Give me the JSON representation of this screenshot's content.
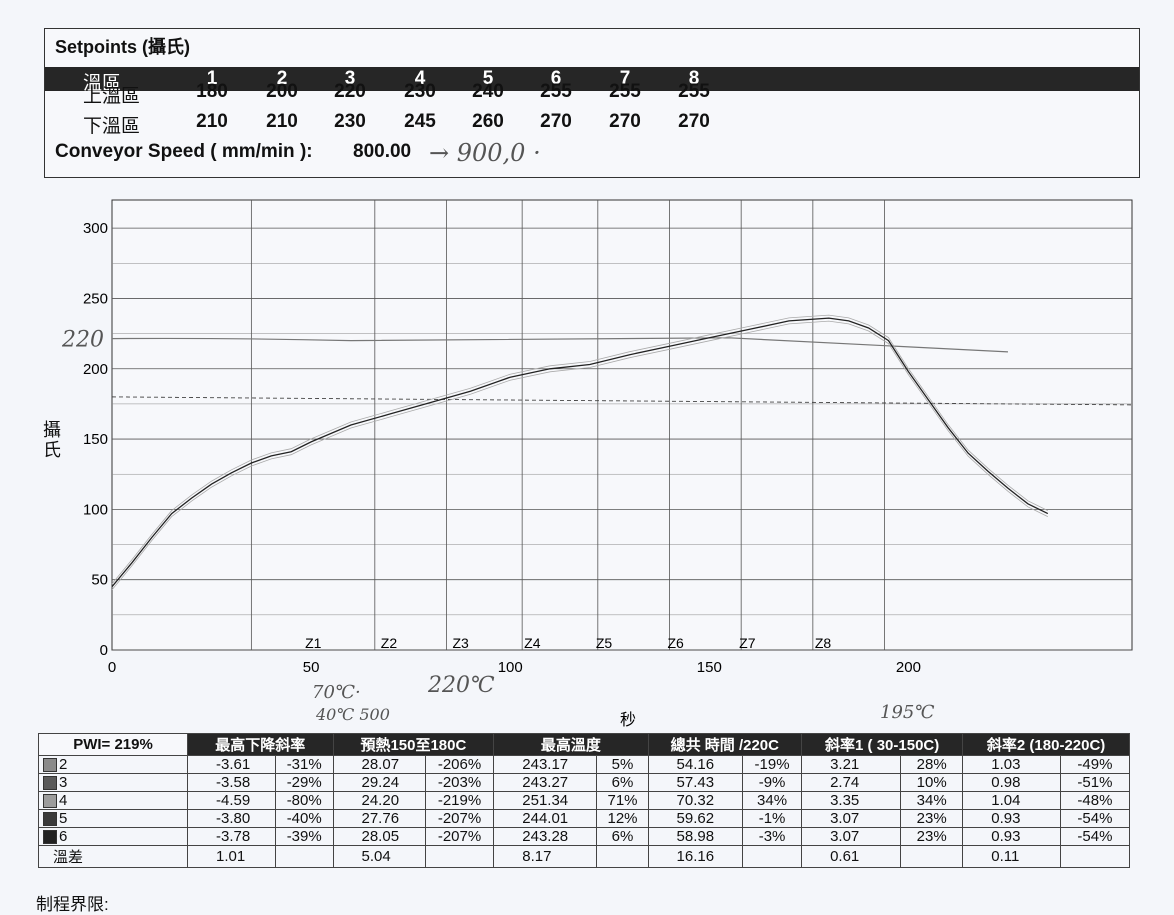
{
  "setpoints": {
    "title": "Setpoints (攝氏)",
    "zone_header": "溫區",
    "zones": [
      "1",
      "2",
      "3",
      "4",
      "5",
      "6",
      "7",
      "8"
    ],
    "upper_label": "上溫區",
    "upper": [
      "180",
      "200",
      "220",
      "230",
      "240",
      "255",
      "255",
      "255"
    ],
    "lower_label": "下溫區",
    "lower": [
      "210",
      "210",
      "230",
      "245",
      "260",
      "270",
      "270",
      "270"
    ],
    "conveyor_label": "Conveyor Speed ( mm/min ):",
    "conveyor_value": "800.00",
    "handwritten_conveyor": "→ 900,0 ·"
  },
  "chart_data": {
    "type": "line",
    "xlabel": "秒",
    "ylabel": "攝氏",
    "xlim": [
      0,
      250
    ],
    "ylim": [
      0,
      320
    ],
    "x_ticks": [
      "0",
      "50",
      "100",
      "150",
      "200"
    ],
    "y_ticks": [
      "0",
      "50",
      "100",
      "150",
      "200",
      "250",
      "300"
    ],
    "zone_markers": [
      {
        "label": "Z1",
        "x": 48
      },
      {
        "label": "Z2",
        "x": 67
      },
      {
        "label": "Z3",
        "x": 85
      },
      {
        "label": "Z4",
        "x": 103
      },
      {
        "label": "Z5",
        "x": 121
      },
      {
        "label": "Z6",
        "x": 139
      },
      {
        "label": "Z7",
        "x": 157
      },
      {
        "label": "Z8",
        "x": 176
      }
    ],
    "extra_gridlines_x": [
      35,
      66,
      84,
      103,
      122,
      140,
      158,
      176,
      194
    ],
    "reference_line_y": 180,
    "handwritten_line_y": 220,
    "series": [
      {
        "values_x": [
          0,
          5,
          10,
          15,
          20,
          25,
          30,
          35,
          40,
          45,
          50,
          60,
          70,
          80,
          90,
          100,
          110,
          120,
          130,
          140,
          150,
          160,
          170,
          175,
          180,
          185,
          190,
          195,
          200,
          205,
          210,
          215,
          220,
          225,
          230,
          235
        ],
        "values_y": [
          45,
          62,
          80,
          97,
          108,
          118,
          126,
          133,
          138,
          141,
          148,
          160,
          168,
          176,
          184,
          194,
          200,
          203,
          210,
          216,
          222,
          228,
          234,
          235,
          236,
          234,
          229,
          220,
          198,
          178,
          158,
          140,
          127,
          115,
          104,
          97
        ]
      }
    ],
    "annotations": [
      "220",
      "70℃·",
      "220℃",
      "40℃ 500",
      "195℃"
    ]
  },
  "table": {
    "pwi": "PWI= 219%",
    "headers": [
      "最高下降斜率",
      "預熱150至180C",
      "最高溫度",
      "總共 時間 /220C",
      "斜率1 ( 30-150C)",
      "斜率2 (180-220C)"
    ],
    "swatch_colors": [
      "#8a8a8a",
      "#5a5a5a",
      "#9c9c9c",
      "#3a3a3a",
      "#222222"
    ],
    "rows": [
      {
        "probe": "2",
        "v": [
          "-3.61",
          "-31%",
          "28.07",
          "-206%",
          "243.17",
          "5%",
          "54.16",
          "-19%",
          "3.21",
          "28%",
          "1.03",
          "-49%"
        ]
      },
      {
        "probe": "3",
        "v": [
          "-3.58",
          "-29%",
          "29.24",
          "-203%",
          "243.27",
          "6%",
          "57.43",
          "-9%",
          "2.74",
          "10%",
          "0.98",
          "-51%"
        ]
      },
      {
        "probe": "4",
        "v": [
          "-4.59",
          "-80%",
          "24.20",
          "-219%",
          "251.34",
          "71%",
          "70.32",
          "34%",
          "3.35",
          "34%",
          "1.04",
          "-48%"
        ]
      },
      {
        "probe": "5",
        "v": [
          "-3.80",
          "-40%",
          "27.76",
          "-207%",
          "244.01",
          "12%",
          "59.62",
          "-1%",
          "3.07",
          "23%",
          "0.93",
          "-54%"
        ]
      },
      {
        "probe": "6",
        "v": [
          "-3.78",
          "-39%",
          "28.05",
          "-207%",
          "243.28",
          "6%",
          "58.98",
          "-3%",
          "3.07",
          "23%",
          "0.93",
          "-54%"
        ]
      }
    ],
    "diff_label": "溫差",
    "diff": [
      "1.01",
      "",
      "5.04",
      "",
      "8.17",
      "",
      "16.16",
      "",
      "0.61",
      "",
      "0.11",
      ""
    ]
  },
  "footer": "制程界限:"
}
